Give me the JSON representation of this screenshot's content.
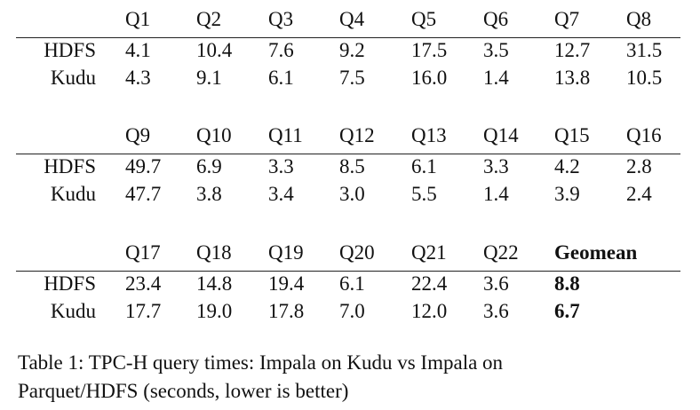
{
  "tables": [
    {
      "headers": [
        "Q1",
        "Q2",
        "Q3",
        "Q4",
        "Q5",
        "Q6",
        "Q7",
        "Q8"
      ],
      "rows": [
        {
          "label": "HDFS",
          "values": [
            "4.1",
            "10.4",
            "7.6",
            "9.2",
            "17.5",
            "3.5",
            "12.7",
            "31.5"
          ]
        },
        {
          "label": "Kudu",
          "values": [
            "4.3",
            "9.1",
            "6.1",
            "7.5",
            "16.0",
            "1.4",
            "13.8",
            "10.5"
          ]
        }
      ]
    },
    {
      "headers": [
        "Q9",
        "Q10",
        "Q11",
        "Q12",
        "Q13",
        "Q14",
        "Q15",
        "Q16"
      ],
      "rows": [
        {
          "label": "HDFS",
          "values": [
            "49.7",
            "6.9",
            "3.3",
            "8.5",
            "6.1",
            "3.3",
            "4.2",
            "2.8"
          ]
        },
        {
          "label": "Kudu",
          "values": [
            "47.7",
            "3.8",
            "3.4",
            "3.0",
            "5.5",
            "1.4",
            "3.9",
            "2.4"
          ]
        }
      ]
    },
    {
      "headers": [
        "Q17",
        "Q18",
        "Q19",
        "Q20",
        "Q21",
        "Q22",
        "Geomean"
      ],
      "rows": [
        {
          "label": "HDFS",
          "values": [
            "23.4",
            "14.8",
            "19.4",
            "6.1",
            "22.4",
            "3.6",
            "8.8"
          ]
        },
        {
          "label": "Kudu",
          "values": [
            "17.7",
            "19.0",
            "17.8",
            "7.0",
            "12.0",
            "3.6",
            "6.7"
          ]
        }
      ]
    }
  ],
  "caption": [
    "Table 1: TPC-H query times: Impala on Kudu vs Impala on",
    "Parquet/HDFS (seconds, lower is better)"
  ]
}
